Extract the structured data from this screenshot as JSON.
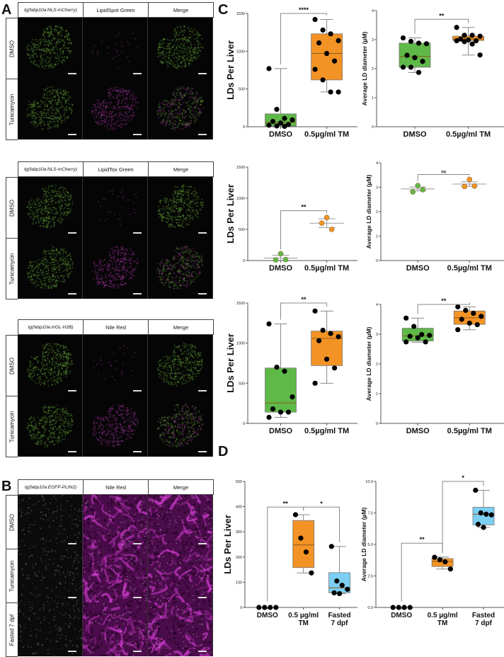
{
  "panels": {
    "A": "A",
    "B": "B",
    "C": "C",
    "D": "D"
  },
  "microscopy": {
    "blocks": [
      {
        "id": "A1",
        "headers": [
          "tg(fabp10a:NLS-mCherry)",
          "LipidSpot Green",
          "Merge"
        ],
        "rows": [
          {
            "label": "DMSO",
            "colors": [
              "green",
              "magenta-sparse",
              "green"
            ]
          },
          {
            "label": "Tunicamycin",
            "colors": [
              "green",
              "magenta",
              "mixed"
            ]
          }
        ]
      },
      {
        "id": "A2",
        "headers": [
          "tg(fabp10a:NLS-mCherry)",
          "LipidTox Green",
          "Merge"
        ],
        "rows": [
          {
            "label": "DMSO",
            "colors": [
              "green",
              "magenta-sparse",
              "green"
            ]
          },
          {
            "label": "Tunicamycin",
            "colors": [
              "green",
              "magenta",
              "mixed"
            ]
          }
        ]
      },
      {
        "id": "A3",
        "headers": [
          "tg(fabp10a:mGL-H2B)",
          "Nile Red",
          "Merge"
        ],
        "rows": [
          {
            "label": "DMSO",
            "colors": [
              "green",
              "magenta-sparse",
              "green"
            ]
          },
          {
            "label": "Tunicamycin",
            "colors": [
              "green",
              "magenta",
              "mixed"
            ]
          }
        ]
      },
      {
        "id": "B",
        "headers": [
          "tg(fabp10a:EGFP-PLIN2)",
          "Nile Red",
          "Merge"
        ],
        "rows": [
          {
            "label": "DMSO",
            "colors": [
              "gray",
              "purple",
              "purple"
            ]
          },
          {
            "label": "Tunicamycin",
            "colors": [
              "gray",
              "purple",
              "purple"
            ]
          },
          {
            "label": "Fasted 7 dpf",
            "colors": [
              "gray",
              "purple",
              "purple"
            ]
          }
        ]
      }
    ]
  },
  "colors": {
    "dmso": "#5fb948",
    "tm": "#f39325",
    "fasted": "#7dcff3",
    "points": "#000000"
  },
  "chart_data": [
    {
      "id": "C1-count",
      "type": "box",
      "ylabel": "LDs Per Liver",
      "ylim": [
        0,
        1500
      ],
      "yticks": [
        "0",
        "500",
        "1000",
        "1500"
      ],
      "categories": [
        "DMSO",
        "0.5µg/ml TM"
      ],
      "series": [
        {
          "name": "DMSO",
          "q1": 10,
          "median": 60,
          "q3": 170,
          "min": 0,
          "max": 770,
          "points": [
            770,
            230,
            110,
            90,
            70,
            50,
            30,
            20,
            10,
            5
          ]
        },
        {
          "name": "0.5µg/ml TM",
          "q1": 620,
          "median": 970,
          "q3": 1230,
          "min": 460,
          "max": 1420,
          "points": [
            1420,
            1280,
            1230,
            1140,
            1110,
            970,
            870,
            760,
            620,
            460,
            460
          ]
        }
      ],
      "significance": [
        {
          "from": 0,
          "to": 1,
          "label": "****",
          "y": 1500
        }
      ]
    },
    {
      "id": "C1-diameter",
      "type": "box",
      "ylabel": "Average LD diameter (µM)",
      "ylim": [
        0,
        4
      ],
      "yticks": [
        "0",
        "1",
        "2",
        "3",
        "4"
      ],
      "categories": [
        "DMSO",
        "0.5µg/ml TM"
      ],
      "series": [
        {
          "name": "DMSO",
          "q1": 2.05,
          "median": 2.42,
          "q3": 2.88,
          "min": 1.87,
          "max": 3.06,
          "points": [
            3.06,
            2.94,
            2.88,
            2.86,
            2.46,
            2.38,
            2.25,
            2.05,
            2.05,
            1.87
          ]
        },
        {
          "name": "0.5µg/ml TM",
          "q1": 2.97,
          "median": 3.02,
          "q3": 3.12,
          "min": 2.47,
          "max": 3.42,
          "points": [
            3.42,
            3.15,
            3.15,
            3.12,
            3.02,
            2.99,
            2.96,
            2.96,
            2.93,
            2.85,
            2.47
          ]
        }
      ],
      "significance": [
        {
          "from": 0,
          "to": 1,
          "label": "**",
          "y": 3.7
        }
      ]
    },
    {
      "id": "C2-count",
      "type": "scatter",
      "ylabel": "LDs Per Liver",
      "ylim": [
        0,
        1500
      ],
      "yticks": [
        "0",
        "500",
        "1000",
        "1500"
      ],
      "categories": [
        "DMSO",
        "0.5µg/ml TM"
      ],
      "series": [
        {
          "name": "DMSO",
          "mean": 40,
          "sd": 45,
          "points": [
            110,
            10,
            15
          ]
        },
        {
          "name": "0.5µg/ml TM",
          "mean": 600,
          "sd": 70,
          "points": [
            690,
            600,
            500
          ]
        }
      ],
      "significance": [
        {
          "from": 0,
          "to": 1,
          "label": "**",
          "y": 800
        }
      ]
    },
    {
      "id": "C2-diameter",
      "type": "scatter",
      "ylabel": "Average LD diameter (µM)",
      "ylim": [
        0,
        4
      ],
      "yticks": [
        "0",
        "1",
        "2",
        "3",
        "4"
      ],
      "categories": [
        "DMSO",
        "0.5µg/ml TM"
      ],
      "series": [
        {
          "name": "DMSO",
          "mean": 2.93,
          "sd": 0.08,
          "points": [
            3.07,
            2.81,
            2.9
          ]
        },
        {
          "name": "0.5µg/ml TM",
          "mean": 3.13,
          "sd": 0.09,
          "points": [
            3.32,
            3.03,
            3.05
          ]
        }
      ],
      "significance": [
        {
          "from": 0,
          "to": 1,
          "label": "ns",
          "y": 3.52
        }
      ]
    },
    {
      "id": "C3-count",
      "type": "box",
      "ylabel": "LDs Per Liver",
      "ylim": [
        0,
        1500
      ],
      "yticks": [
        "0",
        "500",
        "1000",
        "1500"
      ],
      "categories": [
        "DMSO",
        "0.5µg/ml TM"
      ],
      "series": [
        {
          "name": "DMSO",
          "q1": 140,
          "median": 255,
          "q3": 690,
          "min": 75,
          "max": 1240,
          "points": [
            1240,
            700,
            650,
            330,
            180,
            140,
            140,
            75
          ]
        },
        {
          "name": "0.5µg/ml TM",
          "q1": 720,
          "median": 1060,
          "q3": 1150,
          "min": 500,
          "max": 1400,
          "points": [
            1400,
            1160,
            1120,
            1080,
            1030,
            800,
            690,
            500
          ]
        }
      ],
      "significance": [
        {
          "from": 0,
          "to": 1,
          "label": "**",
          "y": 1500
        }
      ]
    },
    {
      "id": "C3-diameter",
      "type": "box",
      "ylabel": "Average LD diameter (µM)",
      "ylim": [
        0,
        4
      ],
      "yticks": [
        "0",
        "1",
        "2",
        "3",
        "4"
      ],
      "categories": [
        "DMSO",
        "0.5µg/ml TM"
      ],
      "series": [
        {
          "name": "DMSO",
          "q1": 2.77,
          "median": 2.94,
          "q3": 3.2,
          "min": 2.73,
          "max": 3.54,
          "points": [
            3.54,
            3.26,
            2.99,
            2.96,
            2.93,
            2.88,
            2.74,
            2.74
          ]
        },
        {
          "name": "0.5µg/ml TM",
          "q1": 3.33,
          "median": 3.55,
          "q3": 3.78,
          "min": 3.15,
          "max": 3.92,
          "points": [
            3.92,
            3.8,
            3.7,
            3.6,
            3.5,
            3.37,
            3.32,
            3.15
          ]
        }
      ],
      "significance": [
        {
          "from": 0,
          "to": 1,
          "label": "**",
          "y": 4.0
        }
      ]
    },
    {
      "id": "D-count",
      "type": "box",
      "ylabel": "LDs Per Liver",
      "ylim": [
        0,
        500
      ],
      "yticks": [
        "0",
        "100",
        "200",
        "300",
        "400",
        "500"
      ],
      "categories": [
        "DMSO",
        "0.5 µg/ml TM",
        "Fasted 7 dpf"
      ],
      "series": [
        {
          "name": "DMSO",
          "q1": 0,
          "median": 0,
          "q3": 0,
          "min": 0,
          "max": 0,
          "points": [
            0,
            0,
            0,
            0
          ]
        },
        {
          "name": "0.5 µg/ml TM",
          "q1": 158,
          "median": 248,
          "q3": 345,
          "min": 137,
          "max": 368,
          "points": [
            368,
            275,
            220,
            137
          ]
        },
        {
          "name": "Fasted 7 dpf",
          "q1": 58,
          "median": 78,
          "q3": 138,
          "min": 55,
          "max": 242,
          "points": [
            242,
            105,
            88,
            72,
            58,
            55
          ]
        }
      ],
      "significance": [
        {
          "from": 0,
          "to": 1,
          "label": "**",
          "y": 398
        },
        {
          "from": 1,
          "to": 2,
          "label": "*",
          "y": 398
        }
      ]
    },
    {
      "id": "D-diameter",
      "type": "box",
      "ylabel": "Average LD diameter (µM)",
      "ylim": [
        0,
        10
      ],
      "yticks": [
        "0.0",
        "2.5",
        "5.0",
        "7.5",
        "10.0"
      ],
      "categories": [
        "DMSO",
        "0.5 µg/ml TM",
        "Fasted 7 dpf"
      ],
      "series": [
        {
          "name": "DMSO",
          "q1": 0,
          "median": 0,
          "q3": 0,
          "min": 0,
          "max": 0,
          "points": [
            0,
            0,
            0,
            0
          ]
        },
        {
          "name": "0.5 µg/ml TM",
          "q1": 3.25,
          "median": 3.65,
          "q3": 3.88,
          "min": 3.05,
          "max": 4.0,
          "points": [
            3.98,
            3.78,
            3.62,
            3.05
          ]
        },
        {
          "name": "Fasted 7 dpf",
          "q1": 6.55,
          "median": 7.4,
          "q3": 7.95,
          "min": 6.35,
          "max": 9.3,
          "points": [
            9.3,
            7.5,
            7.4,
            7.35,
            6.6,
            6.35
          ]
        }
      ],
      "significance": [
        {
          "from": 0,
          "to": 1,
          "label": "**",
          "y": 5.1
        },
        {
          "from": 1,
          "to": 2,
          "label": "*",
          "y": 10.0
        }
      ]
    }
  ]
}
